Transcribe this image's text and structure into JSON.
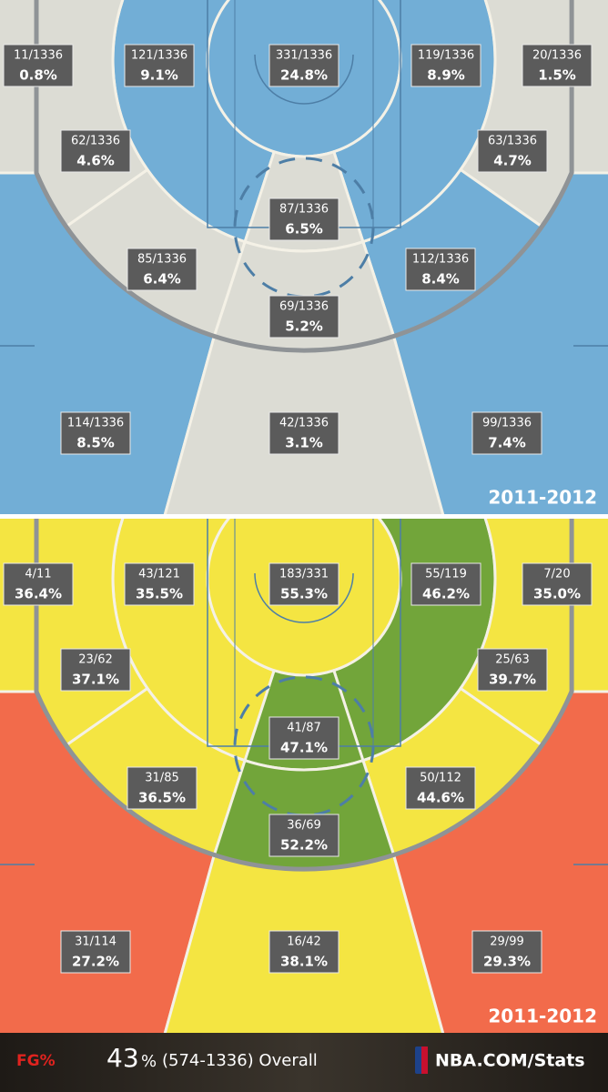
{
  "panels": [
    {
      "season": "2011-2012",
      "zones": [
        {
          "lines": [
            "11/1336",
            "0.8%"
          ],
          "color": "#dcdcd4"
        },
        {
          "lines": [
            "121/1336",
            "9.1%"
          ],
          "color": "#72aed6"
        },
        {
          "lines": [
            "331/1336",
            "24.8%"
          ],
          "color": "#72aed6"
        },
        {
          "lines": [
            "119/1336",
            "8.9%"
          ],
          "color": "#72aed6"
        },
        {
          "lines": [
            "20/1336",
            "1.5%"
          ],
          "color": "#dcdcd4"
        },
        {
          "lines": [
            "62/1336",
            "4.6%"
          ],
          "color": "#dcdcd4"
        },
        {
          "lines": [
            "63/1336",
            "4.7%"
          ],
          "color": "#dcdcd4"
        },
        {
          "lines": [
            "87/1336",
            "6.5%"
          ],
          "color": "#dcdcd4"
        },
        {
          "lines": [
            "85/1336",
            "6.4%"
          ],
          "color": "#dcdcd4"
        },
        {
          "lines": [
            "112/1336",
            "8.4%"
          ],
          "color": "#72aed6"
        },
        {
          "lines": [
            "69/1336",
            "5.2%"
          ],
          "color": "#dcdcd4"
        },
        {
          "lines": [
            "114/1336",
            "8.5%"
          ],
          "color": "#72aed6"
        },
        {
          "lines": [
            "42/1336",
            "3.1%"
          ],
          "color": "#dcdcd4"
        },
        {
          "lines": [
            "99/1336",
            "7.4%"
          ],
          "color": "#72aed6"
        }
      ]
    },
    {
      "season": "2011-2012",
      "zones": [
        {
          "lines": [
            "4/11",
            "36.4%"
          ],
          "color": "#f4e542"
        },
        {
          "lines": [
            "43/121",
            "35.5%"
          ],
          "color": "#f4e542"
        },
        {
          "lines": [
            "183/331",
            "55.3%"
          ],
          "color": "#f4e542"
        },
        {
          "lines": [
            "55/119",
            "46.2%"
          ],
          "color": "#72a53a"
        },
        {
          "lines": [
            "7/20",
            "35.0%"
          ],
          "color": "#f4e542"
        },
        {
          "lines": [
            "23/62",
            "37.1%"
          ],
          "color": "#f4e542"
        },
        {
          "lines": [
            "25/63",
            "39.7%"
          ],
          "color": "#f4e542"
        },
        {
          "lines": [
            "41/87",
            "47.1%"
          ],
          "color": "#72a53a"
        },
        {
          "lines": [
            "31/85",
            "36.5%"
          ],
          "color": "#f4e542"
        },
        {
          "lines": [
            "50/112",
            "44.6%"
          ],
          "color": "#f4e542"
        },
        {
          "lines": [
            "36/69",
            "52.2%"
          ],
          "color": "#72a53a"
        },
        {
          "lines": [
            "31/114",
            "27.2%"
          ],
          "color": "#f26b4b"
        },
        {
          "lines": [
            "16/42",
            "38.1%"
          ],
          "color": "#f4e542"
        },
        {
          "lines": [
            "29/99",
            "29.3%"
          ],
          "color": "#f26b4b"
        }
      ]
    }
  ],
  "footer": {
    "label": "FG%",
    "percent": "43",
    "percent_sign": "%",
    "detail": "(574-1336) Overall",
    "brand": "NBA.COM/Stats"
  }
}
